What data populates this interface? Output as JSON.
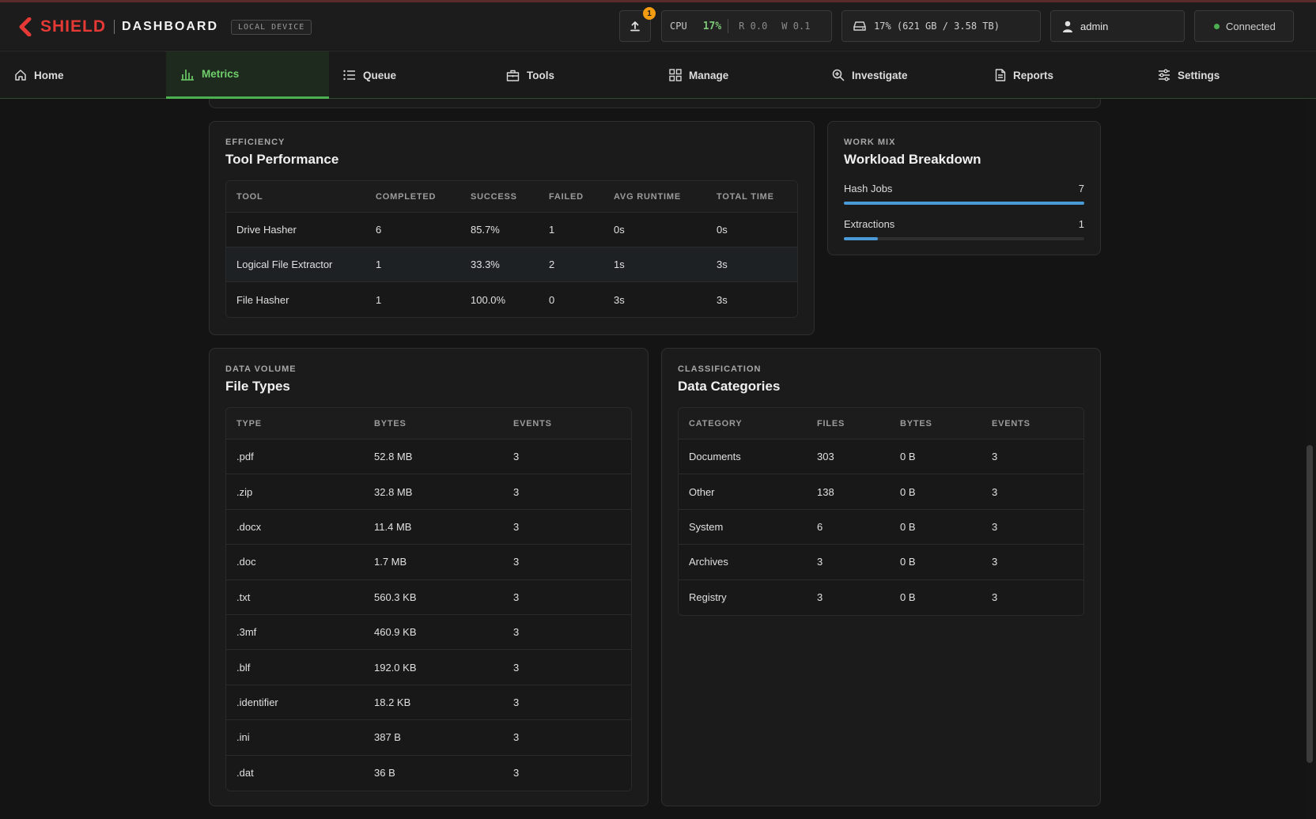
{
  "header": {
    "brand": "SHIELD",
    "app": "DASHBOARD",
    "device": "LOCAL DEVICE",
    "upload_badge": "1",
    "cpu": {
      "label": "CPU",
      "percent": "17%",
      "read": "R 0.0",
      "write": "W 0.1"
    },
    "disk": "17% (621 GB / 3.58 TB)",
    "user": "admin",
    "connection": "Connected",
    "colors": {
      "brand": "#e53935",
      "accent": "#4caf50",
      "badge": "#f39c12"
    }
  },
  "nav": {
    "tabs": [
      {
        "label": "Home",
        "icon": "home-icon"
      },
      {
        "label": "Metrics",
        "icon": "chart-icon",
        "active": true
      },
      {
        "label": "Queue",
        "icon": "list-icon"
      },
      {
        "label": "Tools",
        "icon": "toolbox-icon"
      },
      {
        "label": "Manage",
        "icon": "grid-icon"
      },
      {
        "label": "Investigate",
        "icon": "zoom-in-icon"
      },
      {
        "label": "Reports",
        "icon": "document-icon"
      },
      {
        "label": "Settings",
        "icon": "sliders-icon"
      }
    ]
  },
  "tool_performance": {
    "eyebrow": "EFFICIENCY",
    "title": "Tool Performance",
    "columns": [
      "TOOL",
      "COMPLETED",
      "SUCCESS",
      "FAILED",
      "AVG RUNTIME",
      "TOTAL TIME"
    ],
    "rows": [
      [
        "Drive Hasher",
        "6",
        "85.7%",
        "1",
        "0s",
        "0s"
      ],
      [
        "Logical File Extractor",
        "1",
        "33.3%",
        "2",
        "1s",
        "3s"
      ],
      [
        "File Hasher",
        "1",
        "100.0%",
        "0",
        "3s",
        "3s"
      ]
    ]
  },
  "workload": {
    "eyebrow": "WORK MIX",
    "title": "Workload Breakdown",
    "items": [
      {
        "label": "Hash Jobs",
        "value": "7",
        "fraction": 1.0
      },
      {
        "label": "Extractions",
        "value": "1",
        "fraction": 0.14
      }
    ],
    "bar_color": "#4a9ad8"
  },
  "file_types": {
    "eyebrow": "DATA VOLUME",
    "title": "File Types",
    "columns": [
      "TYPE",
      "BYTES",
      "EVENTS"
    ],
    "rows": [
      [
        ".pdf",
        "52.8 MB",
        "3"
      ],
      [
        ".zip",
        "32.8 MB",
        "3"
      ],
      [
        ".docx",
        "11.4 MB",
        "3"
      ],
      [
        ".doc",
        "1.7 MB",
        "3"
      ],
      [
        ".txt",
        "560.3 KB",
        "3"
      ],
      [
        ".3mf",
        "460.9 KB",
        "3"
      ],
      [
        ".blf",
        "192.0 KB",
        "3"
      ],
      [
        ".identifier",
        "18.2 KB",
        "3"
      ],
      [
        ".ini",
        "387 B",
        "3"
      ],
      [
        ".dat",
        "36 B",
        "3"
      ]
    ]
  },
  "data_categories": {
    "eyebrow": "CLASSIFICATION",
    "title": "Data Categories",
    "columns": [
      "CATEGORY",
      "FILES",
      "BYTES",
      "EVENTS"
    ],
    "rows": [
      [
        "Documents",
        "303",
        "0 B",
        "3"
      ],
      [
        "Other",
        "138",
        "0 B",
        "3"
      ],
      [
        "System",
        "6",
        "0 B",
        "3"
      ],
      [
        "Archives",
        "3",
        "0 B",
        "3"
      ],
      [
        "Registry",
        "3",
        "0 B",
        "3"
      ]
    ]
  }
}
